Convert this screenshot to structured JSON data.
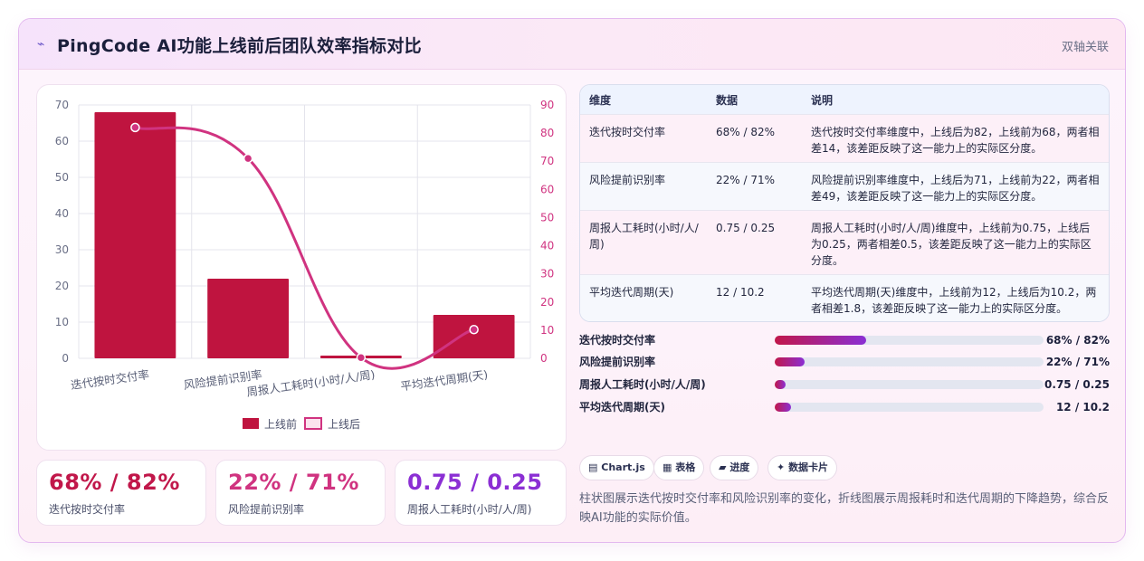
{
  "header": {
    "logo_icon": "sparkle-icon",
    "title": "PingCode AI功能上线前后团队效率指标对比",
    "tag": "双轴关联"
  },
  "chart_data": {
    "type": "bar",
    "categories": [
      "迭代按时交付率",
      "风险提前识别率",
      "周报人工耗时(小时/人/周)",
      "平均迭代周期(天)"
    ],
    "series": [
      {
        "name": "上线前",
        "type": "bar",
        "axis": "left",
        "color": "#bf143f",
        "values": [
          68,
          22,
          0.75,
          12
        ]
      },
      {
        "name": "上线后",
        "type": "line",
        "axis": "right",
        "color": "#d03380",
        "values": [
          82,
          71,
          0.25,
          10.2
        ]
      }
    ],
    "y_left": {
      "range": [
        0,
        70
      ],
      "ticks": [
        "0",
        "10",
        "20",
        "30",
        "40",
        "50",
        "60",
        "70"
      ]
    },
    "y_right": {
      "range": [
        0,
        90
      ],
      "ticks": [
        "0",
        "10",
        "20",
        "30",
        "40",
        "50",
        "60",
        "70",
        "80",
        "90"
      ]
    },
    "grid": true,
    "legend_position": "bottom"
  },
  "kpis": [
    {
      "value": "68% / 82%",
      "label": "迭代按时交付率",
      "color": "#c1174a"
    },
    {
      "value": "22% / 71%",
      "label": "风险提前识别率",
      "color": "#d03380"
    },
    {
      "value": "0.75 / 0.25",
      "label": "周报人工耗时(小时/人/周)",
      "color": "#8b2fd4"
    }
  ],
  "table": {
    "headers": [
      "维度",
      "数据",
      "说明"
    ],
    "rows": [
      {
        "dim": "迭代按时交付率",
        "data": "68% / 82%",
        "desc": "迭代按时交付率维度中，上线后为82，上线前为68，两者相差14，该差距反映了这一能力上的实际区分度。"
      },
      {
        "dim": "风险提前识别率",
        "data": "22% / 71%",
        "desc": "风险提前识别率维度中，上线后为71，上线前为22，两者相差49，该差距反映了这一能力上的实际区分度。"
      },
      {
        "dim": "周报人工耗时(小时/人/周)",
        "data": "0.75 / 0.25",
        "desc": "周报人工耗时(小时/人/周)维度中，上线前为0.75，上线后为0.25，两者相差0.5，该差距反映了这一能力上的实际区分度。"
      },
      {
        "dim": "平均迭代周期(天)",
        "data": "12 / 10.2",
        "desc": "平均迭代周期(天)维度中，上线前为12，上线后为10.2，两者相差1.8，该差距反映了这一能力上的实际区分度。"
      }
    ]
  },
  "progress": [
    {
      "label": "迭代按时交付率",
      "value": "68% / 82%",
      "fraction": 0.34
    },
    {
      "label": "风险提前识别率",
      "value": "22% / 71%",
      "fraction": 0.11
    },
    {
      "label": "周报人工耗时(小时/人/周)",
      "value": "0.75 / 0.25",
      "fraction": 0.04
    },
    {
      "label": "平均迭代周期(天)",
      "value": "12 / 10.2",
      "fraction": 0.06
    }
  ],
  "chips": [
    {
      "icon": "chart-icon",
      "glyph": "▤",
      "label": "Chart.js"
    },
    {
      "icon": "table-icon",
      "glyph": "▦",
      "label": "表格"
    },
    {
      "icon": "progress-icon",
      "glyph": "▰",
      "label": "进度"
    },
    {
      "icon": "card-icon",
      "glyph": "✦",
      "label": "数据卡片"
    }
  ],
  "note": "柱状图展示迭代按时交付率和风险识别率的变化，折线图展示周报耗时和迭代周期的下降趋势，综合反映AI功能的实际价值。"
}
